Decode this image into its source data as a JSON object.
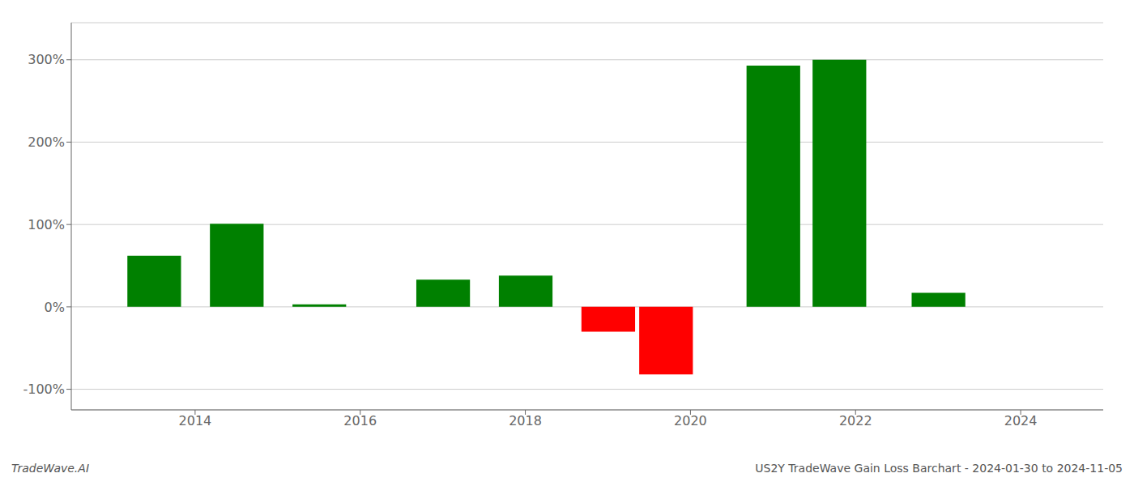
{
  "chart_data": {
    "type": "bar",
    "title": "US2Y TradeWave Gain Loss Barchart - 2024-01-30 to 2024-11-05",
    "annotations": [
      "TradeWave.AI"
    ],
    "x": [
      2013.5,
      2014.5,
      2015.5,
      2017.0,
      2018.0,
      2019.0,
      2019.7,
      2021.0,
      2021.8,
      2023.0
    ],
    "values": [
      62,
      101,
      3,
      33,
      38,
      -30,
      -82,
      293,
      300,
      17
    ],
    "colors": [
      "#008000",
      "#008000",
      "#008000",
      "#008000",
      "#008000",
      "#ff0000",
      "#ff0000",
      "#008000",
      "#008000",
      "#008000"
    ],
    "xlim": [
      2012.5,
      2025.0
    ],
    "xticks": [
      2014,
      2016,
      2018,
      2020,
      2022,
      2024
    ],
    "ylim": [
      -125,
      345
    ],
    "yticks": [
      {
        "value": -100,
        "label": "-100%"
      },
      {
        "value": 0,
        "label": "0%"
      },
      {
        "value": 100,
        "label": "100%"
      },
      {
        "value": 200,
        "label": "200%"
      },
      {
        "value": 300,
        "label": "300%"
      }
    ],
    "grid": true
  }
}
